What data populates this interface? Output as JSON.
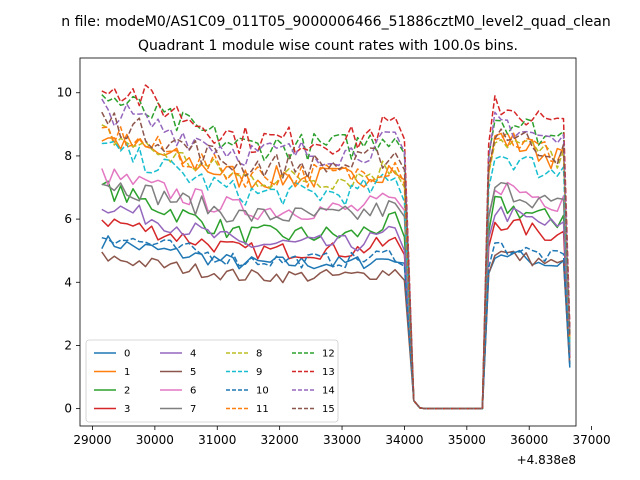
{
  "chart_data": {
    "type": "line",
    "suptitle": "n file: modeM0/AS1C09_011T05_9000006466_51886cztM0_level2_quad_clean",
    "title": "Quadrant 1 module wise count rates with 100.0s bins.",
    "xlabel": "",
    "ylabel": "",
    "x_offset_text": "+4.838e8",
    "xlim": [
      28800,
      36750
    ],
    "ylim": [
      -0.55,
      11.1
    ],
    "xticks": [
      29000,
      30000,
      31000,
      32000,
      33000,
      34000,
      35000,
      36000,
      37000
    ],
    "xtick_labels": [
      "29000",
      "30000",
      "31000",
      "32000",
      "33000",
      "34000",
      "35000",
      "36000",
      "37000"
    ],
    "yticks": [
      0,
      2,
      4,
      6,
      8,
      10
    ],
    "ytick_labels": [
      "0",
      "2",
      "4",
      "6",
      "8",
      "10"
    ],
    "bin_width_s": 100,
    "segments": [
      {
        "start": 29150,
        "end": 34050,
        "active": true
      },
      {
        "start": 34050,
        "end": 34350,
        "active": false,
        "transition": true
      },
      {
        "start": 34350,
        "end": 35250,
        "active": false
      },
      {
        "start": 35250,
        "end": 35450,
        "active": false,
        "transition": true
      },
      {
        "start": 35450,
        "end": 36550,
        "active": true
      },
      {
        "start": 36550,
        "end": 36650,
        "active": false,
        "transition": true
      }
    ],
    "legend": {
      "location": "lower-left",
      "columns": 4
    },
    "series": [
      {
        "name": "0",
        "color": "#1f77b4",
        "dash": "solid",
        "start_level": 5.3,
        "gap_level": 4.6,
        "second_level": 4.6,
        "end_value": 1.3
      },
      {
        "name": "1",
        "color": "#ff7f0e",
        "dash": "solid",
        "start_level": 8.6,
        "gap_level": 7.3,
        "second_level": 8.0,
        "end_value": 2.2
      },
      {
        "name": "2",
        "color": "#2ca02c",
        "dash": "solid",
        "start_level": 7.0,
        "gap_level": 5.5,
        "second_level": 6.0,
        "end_value": 1.9
      },
      {
        "name": "3",
        "color": "#d62728",
        "dash": "solid",
        "start_level": 6.0,
        "gap_level": 5.0,
        "second_level": 5.5,
        "end_value": 1.6
      },
      {
        "name": "4",
        "color": "#9467bd",
        "dash": "solid",
        "start_level": 6.5,
        "gap_level": 5.2,
        "second_level": 5.8,
        "end_value": 1.7
      },
      {
        "name": "5",
        "color": "#8c564b",
        "dash": "solid",
        "start_level": 4.8,
        "gap_level": 4.2,
        "second_level": 4.6,
        "end_value": 1.4
      },
      {
        "name": "6",
        "color": "#e377c2",
        "dash": "solid",
        "start_level": 7.4,
        "gap_level": 6.3,
        "second_level": 6.6,
        "end_value": 1.9
      },
      {
        "name": "7",
        "color": "#7f7f7f",
        "dash": "solid",
        "start_level": 7.2,
        "gap_level": 6.1,
        "second_level": 6.5,
        "end_value": 1.8
      },
      {
        "name": "8",
        "color": "#bcbd22",
        "dash": "dashed",
        "start_level": 8.7,
        "gap_level": 7.3,
        "second_level": 8.0,
        "end_value": 2.2
      },
      {
        "name": "9",
        "color": "#17becf",
        "dash": "dashed",
        "start_level": 8.3,
        "gap_level": 6.8,
        "second_level": 7.5,
        "end_value": 2.0
      },
      {
        "name": "10",
        "color": "#1f77b4",
        "dash": "dashed",
        "start_level": 5.5,
        "gap_level": 4.7,
        "second_level": 4.8,
        "end_value": 1.4
      },
      {
        "name": "11",
        "color": "#ff7f0e",
        "dash": "dashed",
        "start_level": 8.8,
        "gap_level": 7.4,
        "second_level": 8.1,
        "end_value": 2.2
      },
      {
        "name": "12",
        "color": "#2ca02c",
        "dash": "dashed",
        "start_level": 9.9,
        "gap_level": 8.3,
        "second_level": 8.6,
        "end_value": 2.4
      },
      {
        "name": "13",
        "color": "#d62728",
        "dash": "dashed",
        "start_level": 10.4,
        "gap_level": 8.5,
        "second_level": 9.0,
        "end_value": 2.6
      },
      {
        "name": "14",
        "color": "#9467bd",
        "dash": "dashed",
        "start_level": 9.5,
        "gap_level": 8.1,
        "second_level": 8.5,
        "end_value": 2.4
      },
      {
        "name": "15",
        "color": "#8c564b",
        "dash": "dashed",
        "start_level": 9.2,
        "gap_level": 7.7,
        "second_level": 8.2,
        "end_value": 2.3
      }
    ]
  }
}
